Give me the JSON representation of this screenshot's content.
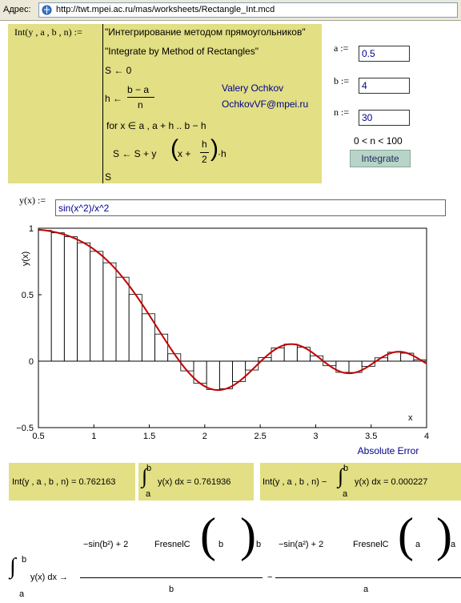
{
  "address_bar": {
    "label": "Адрес:",
    "url": "http://twt.mpei.ac.ru/mas/worksheets/Rectangle_Int.mcd"
  },
  "program": {
    "definition": "Int(y , a , b , n) :=",
    "lines": [
      "\"Интегрирование методом прямоугольников\"",
      "\"Integrate by Method of Rectangles\"",
      "S ← 0"
    ],
    "h_assign": "h ←",
    "h_num": "b − a",
    "h_den": "n",
    "for_line": "for   x ∈ a , a + h .. b − h",
    "s_update_prefix": "S ← S + y",
    "s_update_inner": "x +",
    "s_update_h": "h",
    "s_update_den": "2",
    "s_update_suffix": "·h",
    "return": "S",
    "author": "Valery Ochkov",
    "email": "OchkovVF@mpei.ru"
  },
  "params": {
    "a_label": "a :=",
    "a_value": "0.5",
    "b_label": "b :=",
    "b_value": "4",
    "n_label": "n :=",
    "n_value": "30",
    "constraint": "0 < n < 100",
    "button": "Integrate"
  },
  "function": {
    "label": "y(x) :=",
    "value": "sin(x^2)/x^2"
  },
  "chart_data": {
    "type": "line",
    "x_min": 0.5,
    "x_max": 4,
    "y_min": -0.5,
    "y_max": 1,
    "x_ticks": [
      "0.5",
      "1",
      "1.5",
      "2",
      "2.5",
      "3",
      "3.5",
      "4"
    ],
    "x_tick_values": [
      0.5,
      1,
      1.5,
      2,
      2.5,
      3,
      3.5,
      4
    ],
    "y_ticks": [
      "1",
      "0.5",
      "0",
      "−0.5"
    ],
    "y_tick_values": [
      1,
      0.5,
      0,
      -0.5
    ],
    "xlabel": "x",
    "ylabel": "y(x)",
    "series": [
      {
        "function": "sin(x^2)/x^2",
        "color": "#c00000"
      }
    ],
    "rectangles": {
      "a": 0.5,
      "b": 4,
      "n": 30
    },
    "caption": "Absolute Error"
  },
  "results": {
    "int_value": "Int(y , a , b , n) = 0.762163",
    "integral_lower": "a",
    "integral_upper": "b",
    "integral_text": "y(x) dx = 0.761936",
    "err_prefix": "Int(y , a , b , n) −",
    "err_text": "y(x) dx = 0.000227"
  },
  "symbolic": {
    "lhs": "y(x) dx →",
    "lower": "a",
    "upper": "b",
    "num1_text": "−sin(b²) + 2",
    "num2_text": "−sin(a²) + 2",
    "fresnel": "FresnelC",
    "var_b": "b",
    "var_a": "a",
    "den1": "b",
    "den2": "a",
    "minus": "−"
  }
}
